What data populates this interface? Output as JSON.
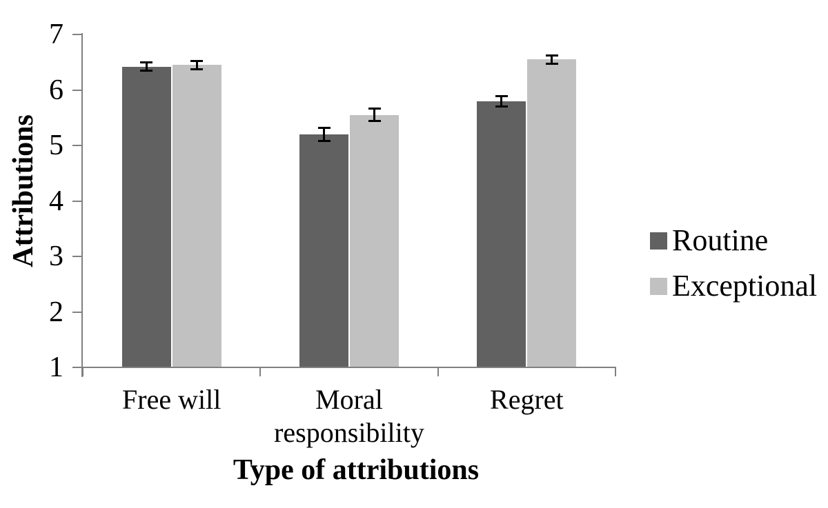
{
  "chart_data": {
    "type": "bar",
    "title": "",
    "categories": [
      "Free will",
      "Moral responsibility",
      "Regret"
    ],
    "series": [
      {
        "name": "Routine",
        "color": "#616161",
        "values": [
          6.42,
          5.2,
          5.8
        ],
        "errors": [
          0.08,
          0.12,
          0.1
        ]
      },
      {
        "name": "Exceptional",
        "color": "#c1c1c1",
        "values": [
          6.45,
          5.55,
          6.55
        ],
        "errors": [
          0.08,
          0.12,
          0.08
        ]
      }
    ],
    "xlabel": "Type of attributions",
    "ylabel": "Attributions",
    "ylim": [
      1,
      7
    ],
    "yticks": [
      1,
      2,
      3,
      4,
      5,
      6,
      7
    ],
    "grid": false,
    "legend_position": "right",
    "error_bars": true,
    "axis_color": "#808080",
    "error_bar_color": "#000000",
    "text_color": "#000000"
  }
}
